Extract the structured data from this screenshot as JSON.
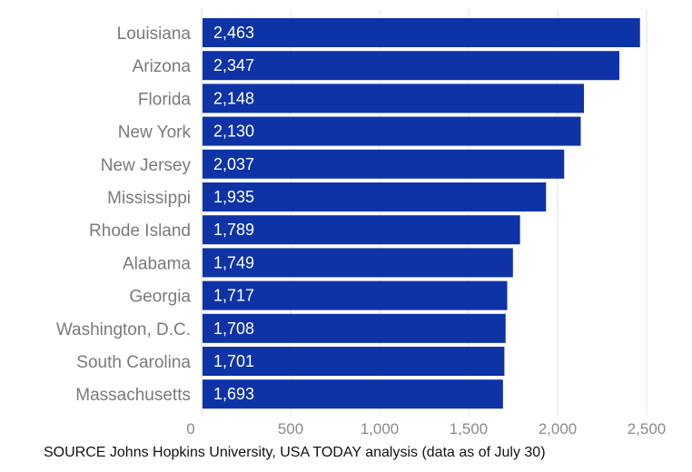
{
  "chart_data": {
    "type": "bar",
    "orientation": "horizontal",
    "categories": [
      "Louisiana",
      "Arizona",
      "Florida",
      "New York",
      "New Jersey",
      "Mississippi",
      "Rhode Island",
      "Alabama",
      "Georgia",
      "Washington, D.C.",
      "South Carolina",
      "Massachusetts"
    ],
    "values": [
      2463,
      2347,
      2148,
      2130,
      2037,
      1935,
      1789,
      1749,
      1717,
      1708,
      1701,
      1693
    ],
    "value_labels": [
      "2,463",
      "2,347",
      "2,148",
      "2,130",
      "2,037",
      "1,935",
      "1,789",
      "1,749",
      "1,717",
      "1,708",
      "1,701",
      "1,693"
    ],
    "xlim": [
      0,
      2500
    ],
    "xticks": [
      0,
      500,
      1000,
      1500,
      2000,
      2500
    ],
    "xtick_labels": [
      "0",
      "500",
      "1,000",
      "1,500",
      "2,000",
      "2,500"
    ],
    "bar_color": "#0d33a6",
    "grid": true
  },
  "source": "SOURCE Johns Hopkins University, USA TODAY analysis (data as of July 30)"
}
